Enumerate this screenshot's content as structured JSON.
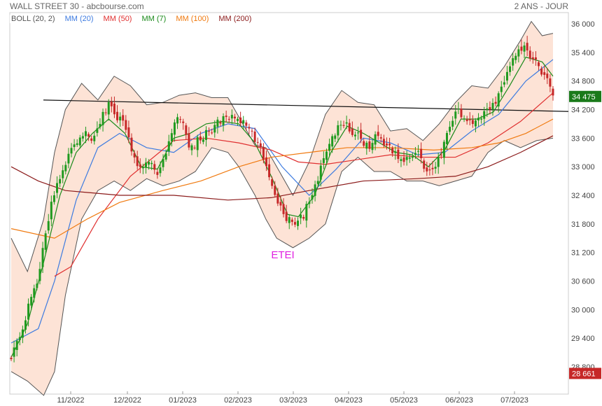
{
  "header": {
    "title": "WALL STREET 30 - abcbourse.com",
    "period": "2 ANS - JOUR"
  },
  "legend": [
    {
      "label": "BOLL (20, 2)",
      "color": "#555555"
    },
    {
      "label": "MM (20)",
      "color": "#3d7be0"
    },
    {
      "label": "MM (50)",
      "color": "#e03030"
    },
    {
      "label": "MM (7)",
      "color": "#1a8a1a"
    },
    {
      "label": "MM (100)",
      "color": "#f07a10"
    },
    {
      "label": "MM (200)",
      "color": "#8b1a1a"
    }
  ],
  "annotation": {
    "label": "ETEI",
    "color": "#e020e0"
  },
  "colors": {
    "up": "#1f9a1f",
    "down": "#c62828",
    "band_fill": "#fde3d6",
    "badge_high": "#1a7a1a",
    "badge_low": "#c62828"
  },
  "chart_data": {
    "type": "candlestick",
    "title": "WALL STREET 30",
    "y_ticks": [
      28800,
      29400,
      30000,
      30600,
      31200,
      31800,
      32400,
      33000,
      33600,
      34200,
      34800,
      35400,
      36000
    ],
    "y_tick_labels": [
      "28 800",
      "29 400",
      "30 000",
      "30 600",
      "31 200",
      "31 800",
      "32 400",
      "33 000",
      "33 600",
      "34 200",
      "34 800",
      "35 400",
      "36 000"
    ],
    "ylim": [
      28600,
      36100
    ],
    "x_ticks": [
      "11/2022",
      "12/2022",
      "01/2023",
      "02/2023",
      "03/2023",
      "04/2023",
      "05/2023",
      "06/2023",
      "07/2023"
    ],
    "last_price_label": "34 475",
    "last_price": 34475,
    "low_price_label": "28 661",
    "low_price": 28661,
    "trendline": {
      "from": [
        0,
        34400
      ],
      "to": [
        1,
        34160
      ]
    },
    "close_path": [
      [
        0.0,
        29050
      ],
      [
        0.02,
        29500
      ],
      [
        0.035,
        30200
      ],
      [
        0.05,
        30700
      ],
      [
        0.065,
        31700
      ],
      [
        0.08,
        32500
      ],
      [
        0.095,
        32900
      ],
      [
        0.11,
        33400
      ],
      [
        0.13,
        33700
      ],
      [
        0.15,
        33600
      ],
      [
        0.165,
        34000
      ],
      [
        0.18,
        34300
      ],
      [
        0.195,
        34050
      ],
      [
        0.21,
        33900
      ],
      [
        0.225,
        33200
      ],
      [
        0.24,
        32900
      ],
      [
        0.255,
        33100
      ],
      [
        0.27,
        32850
      ],
      [
        0.29,
        33500
      ],
      [
        0.31,
        34100
      ],
      [
        0.33,
        33400
      ],
      [
        0.35,
        33600
      ],
      [
        0.37,
        33800
      ],
      [
        0.39,
        34000
      ],
      [
        0.41,
        34050
      ],
      [
        0.43,
        33900
      ],
      [
        0.45,
        33600
      ],
      [
        0.465,
        33200
      ],
      [
        0.48,
        32700
      ],
      [
        0.495,
        32200
      ],
      [
        0.51,
        31900
      ],
      [
        0.525,
        31850
      ],
      [
        0.54,
        32000
      ],
      [
        0.555,
        32400
      ],
      [
        0.57,
        32900
      ],
      [
        0.585,
        33400
      ],
      [
        0.6,
        33750
      ],
      [
        0.615,
        33950
      ],
      [
        0.63,
        33750
      ],
      [
        0.645,
        33600
      ],
      [
        0.66,
        33400
      ],
      [
        0.675,
        33700
      ],
      [
        0.69,
        33500
      ],
      [
        0.705,
        33300
      ],
      [
        0.72,
        33100
      ],
      [
        0.735,
        33200
      ],
      [
        0.75,
        33350
      ],
      [
        0.765,
        32900
      ],
      [
        0.78,
        32900
      ],
      [
        0.795,
        33300
      ],
      [
        0.81,
        33900
      ],
      [
        0.825,
        34200
      ],
      [
        0.84,
        34000
      ],
      [
        0.855,
        33900
      ],
      [
        0.87,
        34050
      ],
      [
        0.885,
        34200
      ],
      [
        0.9,
        34500
      ],
      [
        0.915,
        35000
      ],
      [
        0.93,
        35350
      ],
      [
        0.945,
        35500
      ],
      [
        0.96,
        35300
      ],
      [
        0.975,
        35100
      ],
      [
        0.99,
        34800
      ],
      [
        1.0,
        34475
      ]
    ],
    "series": [
      {
        "name": "MM (20)",
        "color": "#3d7be0",
        "values": [
          [
            0.0,
            29300
          ],
          [
            0.05,
            29600
          ],
          [
            0.08,
            30600
          ],
          [
            0.12,
            32300
          ],
          [
            0.16,
            33400
          ],
          [
            0.2,
            33700
          ],
          [
            0.25,
            33400
          ],
          [
            0.3,
            33300
          ],
          [
            0.35,
            33700
          ],
          [
            0.4,
            33900
          ],
          [
            0.45,
            33800
          ],
          [
            0.5,
            33000
          ],
          [
            0.55,
            32400
          ],
          [
            0.6,
            32950
          ],
          [
            0.65,
            33600
          ],
          [
            0.7,
            33500
          ],
          [
            0.75,
            33250
          ],
          [
            0.8,
            33300
          ],
          [
            0.85,
            33750
          ],
          [
            0.9,
            34100
          ],
          [
            0.95,
            34800
          ],
          [
            1.0,
            35250
          ]
        ]
      },
      {
        "name": "MM (50)",
        "color": "#e03030",
        "values": [
          [
            0.08,
            30700
          ],
          [
            0.11,
            30900
          ],
          [
            0.16,
            31900
          ],
          [
            0.22,
            32800
          ],
          [
            0.3,
            33550
          ],
          [
            0.36,
            33600
          ],
          [
            0.42,
            33500
          ],
          [
            0.48,
            33350
          ],
          [
            0.53,
            33100
          ],
          [
            0.58,
            33050
          ],
          [
            0.64,
            33150
          ],
          [
            0.7,
            33250
          ],
          [
            0.76,
            33200
          ],
          [
            0.82,
            33200
          ],
          [
            0.88,
            33500
          ],
          [
            0.94,
            33950
          ],
          [
            1.0,
            34550
          ]
        ]
      },
      {
        "name": "MM (100)",
        "color": "#f07a10",
        "values": [
          [
            0.0,
            31700
          ],
          [
            0.08,
            31500
          ],
          [
            0.14,
            31900
          ],
          [
            0.2,
            32250
          ],
          [
            0.28,
            32500
          ],
          [
            0.35,
            32700
          ],
          [
            0.42,
            33000
          ],
          [
            0.48,
            33200
          ],
          [
            0.55,
            33300
          ],
          [
            0.62,
            33400
          ],
          [
            0.7,
            33400
          ],
          [
            0.78,
            33350
          ],
          [
            0.85,
            33400
          ],
          [
            0.9,
            33500
          ],
          [
            0.95,
            33700
          ],
          [
            1.0,
            34000
          ]
        ]
      },
      {
        "name": "MM (200)",
        "color": "#8b1a1a",
        "values": [
          [
            0.0,
            33000
          ],
          [
            0.05,
            32700
          ],
          [
            0.1,
            32500
          ],
          [
            0.2,
            32400
          ],
          [
            0.3,
            32400
          ],
          [
            0.4,
            32300
          ],
          [
            0.48,
            32350
          ],
          [
            0.55,
            32500
          ],
          [
            0.65,
            32700
          ],
          [
            0.75,
            32750
          ],
          [
            0.82,
            32800
          ],
          [
            0.88,
            33000
          ],
          [
            0.94,
            33300
          ],
          [
            1.0,
            33650
          ]
        ]
      },
      {
        "name": "MM (7)",
        "color": "#1a8a1a",
        "values": [
          [
            0.0,
            29000
          ],
          [
            0.03,
            29700
          ],
          [
            0.06,
            31000
          ],
          [
            0.09,
            32400
          ],
          [
            0.12,
            33300
          ],
          [
            0.15,
            33700
          ],
          [
            0.18,
            34000
          ],
          [
            0.21,
            33700
          ],
          [
            0.24,
            33000
          ],
          [
            0.27,
            32950
          ],
          [
            0.3,
            33600
          ],
          [
            0.33,
            33700
          ],
          [
            0.36,
            33900
          ],
          [
            0.39,
            33950
          ],
          [
            0.42,
            33900
          ],
          [
            0.45,
            33500
          ],
          [
            0.48,
            32800
          ],
          [
            0.51,
            32000
          ],
          [
            0.53,
            31950
          ],
          [
            0.56,
            32400
          ],
          [
            0.59,
            33300
          ],
          [
            0.62,
            33850
          ],
          [
            0.65,
            33700
          ],
          [
            0.68,
            33500
          ],
          [
            0.71,
            33300
          ],
          [
            0.74,
            33250
          ],
          [
            0.77,
            33000
          ],
          [
            0.8,
            33350
          ],
          [
            0.83,
            34000
          ],
          [
            0.86,
            34000
          ],
          [
            0.89,
            34150
          ],
          [
            0.92,
            34700
          ],
          [
            0.95,
            35300
          ],
          [
            0.98,
            35200
          ],
          [
            1.0,
            34900
          ]
        ]
      }
    ],
    "bollinger": {
      "name": "BOLL (20, 2)",
      "upper": [
        [
          0.0,
          31500
        ],
        [
          0.03,
          30800
        ],
        [
          0.06,
          31900
        ],
        [
          0.08,
          33300
        ],
        [
          0.1,
          34200
        ],
        [
          0.13,
          34750
        ],
        [
          0.16,
          34400
        ],
        [
          0.19,
          34900
        ],
        [
          0.22,
          34700
        ],
        [
          0.25,
          34300
        ],
        [
          0.28,
          34350
        ],
        [
          0.31,
          34500
        ],
        [
          0.34,
          34550
        ],
        [
          0.37,
          34450
        ],
        [
          0.4,
          34450
        ],
        [
          0.42,
          34050
        ],
        [
          0.45,
          33450
        ],
        [
          0.47,
          33400
        ],
        [
          0.49,
          33000
        ],
        [
          0.52,
          32400
        ],
        [
          0.55,
          33100
        ],
        [
          0.58,
          34100
        ],
        [
          0.61,
          34600
        ],
        [
          0.64,
          34350
        ],
        [
          0.67,
          34300
        ],
        [
          0.7,
          33750
        ],
        [
          0.73,
          33800
        ],
        [
          0.76,
          33550
        ],
        [
          0.79,
          33900
        ],
        [
          0.82,
          34350
        ],
        [
          0.85,
          34700
        ],
        [
          0.88,
          34650
        ],
        [
          0.91,
          35100
        ],
        [
          0.94,
          35650
        ],
        [
          0.96,
          36050
        ],
        [
          0.98,
          35750
        ],
        [
          1.0,
          35800
        ]
      ],
      "lower": [
        [
          0.0,
          28700
        ],
        [
          0.03,
          28500
        ],
        [
          0.06,
          28200
        ],
        [
          0.08,
          28700
        ],
        [
          0.1,
          30300
        ],
        [
          0.13,
          31900
        ],
        [
          0.16,
          32500
        ],
        [
          0.19,
          32700
        ],
        [
          0.22,
          32500
        ],
        [
          0.25,
          32750
        ],
        [
          0.28,
          32600
        ],
        [
          0.31,
          32700
        ],
        [
          0.34,
          32900
        ],
        [
          0.37,
          33400
        ],
        [
          0.4,
          33300
        ],
        [
          0.42,
          33000
        ],
        [
          0.45,
          32400
        ],
        [
          0.47,
          31900
        ],
        [
          0.49,
          31500
        ],
        [
          0.52,
          31300
        ],
        [
          0.55,
          31500
        ],
        [
          0.58,
          31800
        ],
        [
          0.61,
          32900
        ],
        [
          0.64,
          33200
        ],
        [
          0.67,
          32900
        ],
        [
          0.7,
          32900
        ],
        [
          0.73,
          32700
        ],
        [
          0.76,
          32700
        ],
        [
          0.79,
          32600
        ],
        [
          0.82,
          32700
        ],
        [
          0.85,
          32800
        ],
        [
          0.88,
          33300
        ],
        [
          0.91,
          33550
        ],
        [
          0.94,
          33400
        ],
        [
          0.97,
          33550
        ],
        [
          1.0,
          33600
        ]
      ]
    }
  }
}
